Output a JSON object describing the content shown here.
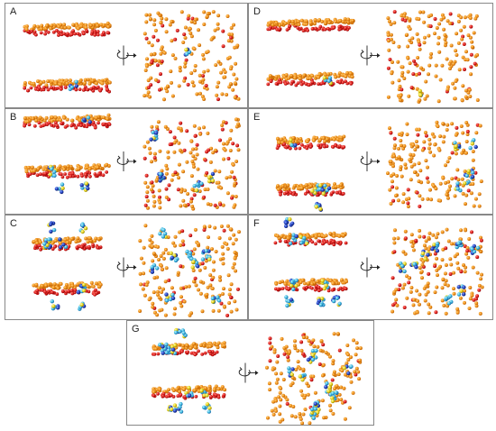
{
  "panels": [
    {
      "label": "A"
    },
    {
      "label": "B"
    },
    {
      "label": "C"
    },
    {
      "label": "D"
    },
    {
      "label": "E"
    },
    {
      "label": "F"
    },
    {
      "label": "G"
    }
  ]
}
